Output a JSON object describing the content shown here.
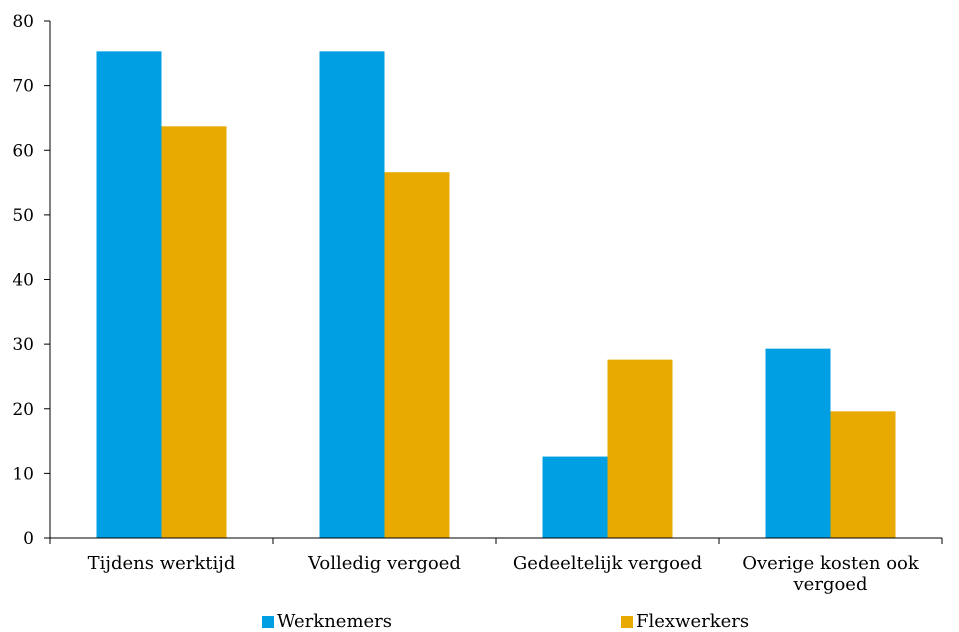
{
  "chart_data": {
    "type": "bar",
    "title": "",
    "xlabel": "",
    "ylabel": "",
    "ylim": [
      0,
      80
    ],
    "yticks": [
      0,
      10,
      20,
      30,
      40,
      50,
      60,
      70,
      80
    ],
    "categories": [
      [
        "Tijdens werktijd"
      ],
      [
        "Volledig vergoed"
      ],
      [
        "Gedeeltelijk vergoed"
      ],
      [
        "Overige kosten ook",
        "vergoed"
      ]
    ],
    "series": [
      {
        "name": "Werknemers",
        "color": "#009fe3",
        "values": [
          75.3,
          75.3,
          12.6,
          29.3
        ]
      },
      {
        "name": "Flexwerkers",
        "color": "#e8aa00",
        "values": [
          63.7,
          56.6,
          27.6,
          19.6
        ]
      }
    ],
    "grid": false,
    "legend_position": "bottom"
  }
}
